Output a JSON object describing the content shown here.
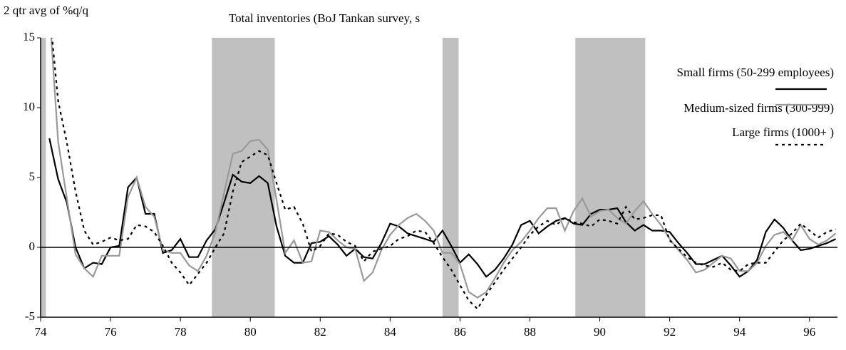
{
  "chart_data": {
    "type": "line",
    "title": "Total inventories (BoJ Tankan survey, s",
    "y_label": "2 qtr avg of %q/q",
    "legend": "upper right",
    "xlim": [
      74,
      96.8
    ],
    "ylim": [
      -5,
      15
    ],
    "xticks": [
      74,
      76,
      78,
      80,
      82,
      84,
      86,
      88,
      90,
      92,
      94,
      96
    ],
    "yticks": [
      -5,
      0,
      5,
      10,
      15
    ],
    "reference_line": 0,
    "shaded_ranges": [
      [
        74,
        74.15
      ],
      [
        78.9,
        80.7
      ],
      [
        85.5,
        85.96
      ],
      [
        89.3,
        91.3
      ]
    ],
    "shade_color": "#c0c0c0",
    "x": [
      74.25,
      74.5,
      74.75,
      75,
      75.25,
      75.5,
      75.75,
      76,
      76.25,
      76.5,
      76.75,
      77,
      77.25,
      77.5,
      77.75,
      78,
      78.25,
      78.5,
      78.75,
      79,
      79.25,
      79.5,
      79.75,
      80,
      80.25,
      80.5,
      80.75,
      81,
      81.25,
      81.5,
      81.75,
      82,
      82.25,
      82.5,
      82.75,
      83,
      83.25,
      83.5,
      83.75,
      84,
      84.25,
      84.5,
      84.75,
      85,
      85.25,
      85.5,
      85.75,
      86,
      86.25,
      86.5,
      86.75,
      87,
      87.25,
      87.5,
      87.75,
      88,
      88.25,
      88.5,
      88.75,
      89,
      89.25,
      89.5,
      89.75,
      90,
      90.25,
      90.5,
      90.75,
      91,
      91.25,
      91.5,
      91.75,
      92,
      92.25,
      92.5,
      92.75,
      93,
      93.25,
      93.5,
      93.75,
      94,
      94.25,
      94.5,
      94.75,
      95,
      95.25,
      95.5,
      95.75,
      96,
      96.25,
      96.5,
      96.75
    ],
    "series": [
      {
        "name": "Small firms (50-299 employees)",
        "color": "#000000",
        "line_style": "solid",
        "values": [
          7.8,
          4.9,
          3.2,
          0,
          -1.5,
          -1.1,
          -1.2,
          0,
          0.1,
          4.3,
          5,
          2.4,
          2.4,
          -0.4,
          -0.2,
          0.6,
          -0.7,
          -0.7,
          0.5,
          1.3,
          3.2,
          5.2,
          4.7,
          4.6,
          5.1,
          4.6,
          1.5,
          -0.6,
          -1.1,
          -1.1,
          0.3,
          0.4,
          0.8,
          0.2,
          -0.6,
          -0.1,
          -0.7,
          -0.8,
          0.3,
          1.7,
          1.5,
          1,
          0.8,
          0.6,
          0.4,
          1.2,
          0.1,
          -1.1,
          -0.5,
          -1.2,
          -2.1,
          -1.6,
          -0.8,
          0.2,
          1.6,
          1.9,
          1,
          1.5,
          1.9,
          2.1,
          1.7,
          1.6,
          2.4,
          2.7,
          2.7,
          2.8,
          1.8,
          1.2,
          1.6,
          1.2,
          1.2,
          1.1,
          0.3,
          -0.4,
          -1.2,
          -1.2,
          -0.9,
          -0.6,
          -1.3,
          -2.1,
          -1.7,
          -0.9,
          1.1,
          2,
          1.4,
          0.5,
          -0.2,
          -0.1,
          0.1,
          0.3,
          0.6
        ]
      },
      {
        "name": "Medium-sized firms (300-999)",
        "color": "#999999",
        "line_style": "solid",
        "values": [
          17,
          7.6,
          3.5,
          -0.5,
          -1.5,
          -2.1,
          -0.6,
          -0.6,
          -0.6,
          3.6,
          5,
          2.9,
          2.2,
          -0.2,
          -0.4,
          -0.4,
          -1.3,
          -1.7,
          -0.6,
          1.1,
          3.9,
          6.7,
          6.9,
          7.6,
          7.7,
          7,
          3.4,
          -0.4,
          0.5,
          -1.1,
          -1,
          1.2,
          1.1,
          0.5,
          0,
          -0.1,
          -2.4,
          -1.8,
          -0.2,
          0.9,
          1.6,
          2.1,
          2.4,
          1.9,
          1.2,
          -0.4,
          -0.4,
          -1.2,
          -3.2,
          -3.6,
          -3.2,
          -2.2,
          -1.1,
          -0.2,
          0.4,
          1.2,
          2.1,
          2.8,
          2.8,
          1.2,
          2.6,
          3.5,
          2.2,
          2.6,
          2.7,
          2.1,
          1.7,
          2.6,
          3.3,
          2.4,
          1.6,
          0.6,
          -0.2,
          -0.9,
          -1.8,
          -1.6,
          -1.1,
          -0.6,
          -0.8,
          -1.7,
          -1.7,
          -1.1,
          0.1,
          0.9,
          1.1,
          0.5,
          1.6,
          0.6,
          0.2,
          0.5,
          1
        ]
      },
      {
        "name": "Large firms (1000+ )",
        "color": "#000000",
        "line_style": "dotted",
        "values": [
          17,
          10.5,
          7.5,
          4,
          1.2,
          0.2,
          0.4,
          0.7,
          0.5,
          0.6,
          1.6,
          1.5,
          1.1,
          0.1,
          -1.1,
          -1.8,
          -2.7,
          -1.9,
          -1.1,
          0,
          1,
          4,
          6.1,
          6.5,
          6.9,
          6.6,
          4.6,
          2.7,
          2.9,
          1.7,
          -0.3,
          0.1,
          1,
          0.9,
          0.4,
          0.1,
          -1,
          -0.3,
          -0.1,
          0.1,
          0.6,
          0.8,
          1.2,
          1.1,
          0.3,
          -0.7,
          -1.6,
          -2.7,
          -3.8,
          -4.4,
          -3.4,
          -2.5,
          -1.6,
          -0.8,
          0,
          0.9,
          1.5,
          1.9,
          1.6,
          2.1,
          1.8,
          1.7,
          1.5,
          2,
          1.9,
          1.7,
          2.9,
          2,
          2.1,
          2.3,
          2.3,
          0.5,
          -0.1,
          -0.7,
          -1.1,
          -1.3,
          -1.4,
          -1.1,
          -1.6,
          -1.7,
          -1.2,
          -1.1,
          -1.1,
          -0.3,
          0.5,
          1,
          1.7,
          1.2,
          0.7,
          1.1,
          1.3
        ]
      }
    ]
  }
}
